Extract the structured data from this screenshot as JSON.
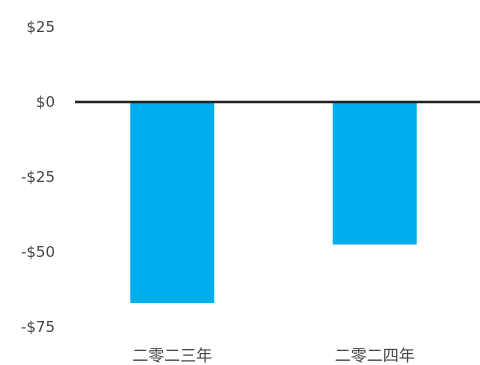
{
  "chart_data": {
    "type": "bar",
    "categories": [
      "二零二三年",
      "二零二四年"
    ],
    "series": [
      {
        "values": [
          -67,
          -47.5
        ]
      }
    ],
    "title": "",
    "xlabel": "",
    "ylabel": "",
    "ylim": [
      -75,
      25
    ],
    "y_ticks": [
      25,
      0,
      -25,
      -50,
      -75
    ],
    "y_tick_labels": [
      "$25",
      "$0",
      "-$25",
      "-$50",
      "-$75"
    ],
    "grid": false,
    "zero_line": true,
    "colors": {
      "bar": "#00AEEF",
      "zero_line": "#222222",
      "text": "#444444"
    }
  }
}
